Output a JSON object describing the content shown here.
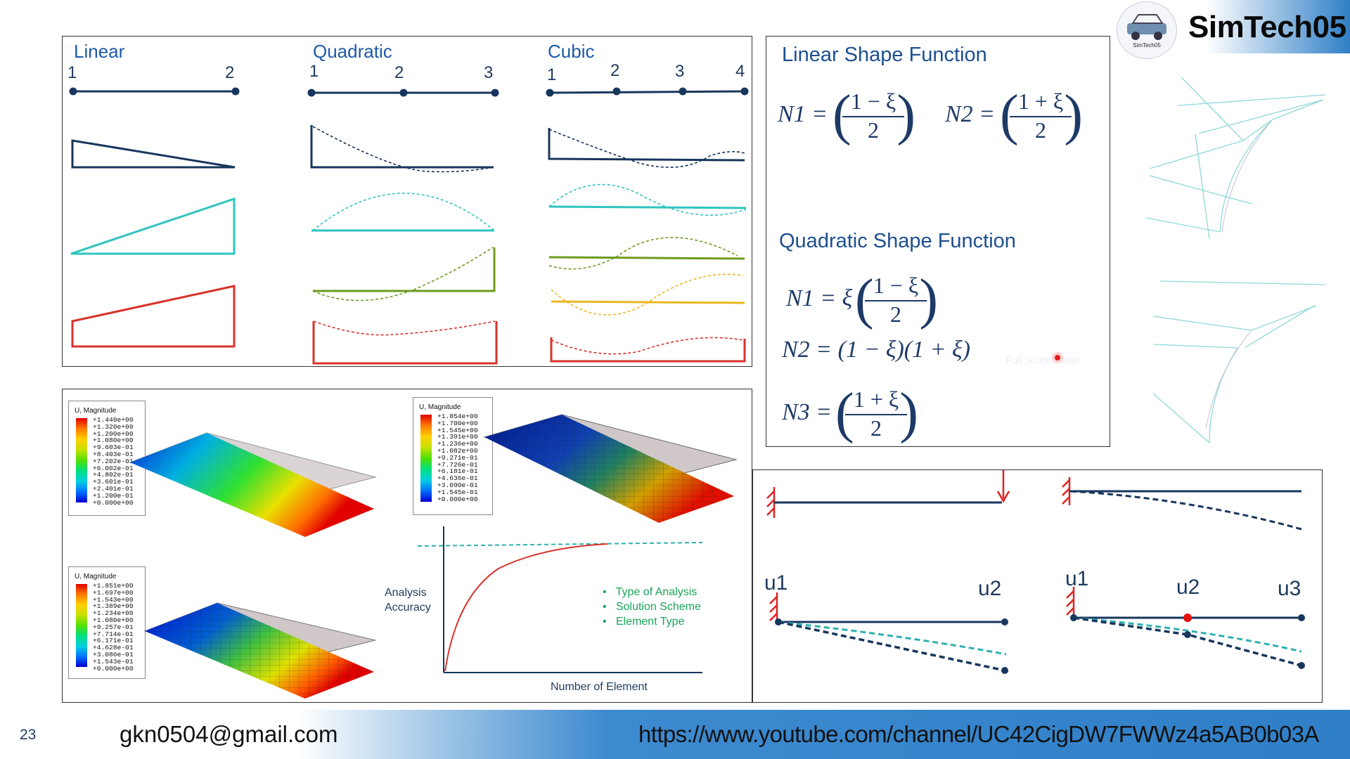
{
  "brand": {
    "name": "SimTech05",
    "logo_text": "SimTech05"
  },
  "footer": {
    "page_number": "23",
    "email": "gkn0504@gmail.com",
    "url": "https://www.youtube.com/channel/UC42CigDW7FWWz4a5AB0b03A"
  },
  "shape_panel": {
    "linear": {
      "label": "Linear",
      "nodes": [
        "1",
        "2"
      ]
    },
    "quadratic": {
      "label": "Quadratic",
      "nodes": [
        "1",
        "2",
        "3"
      ]
    },
    "cubic": {
      "label": "Cubic",
      "nodes": [
        "1",
        "2",
        "3",
        "4"
      ]
    }
  },
  "equations": {
    "linear_title": "Linear Shape Function",
    "linear_n1_lhs": "N1 =",
    "linear_n1_num": "1 − ξ",
    "linear_n1_den": "2",
    "linear_n2_lhs": "N2 =",
    "linear_n2_num": "1 + ξ",
    "linear_n2_den": "2",
    "quadratic_title": "Quadratic Shape Function",
    "quad_n1_lhs": "N1 = ξ",
    "quad_n1_num": "1 − ξ",
    "quad_n1_den": "2",
    "quad_n2": "N2 = (1 − ξ)(1 + ξ)",
    "quad_n3_lhs": "N3 =",
    "quad_n3_num": "1 + ξ",
    "quad_n3_den": "2",
    "hint_overlay": "Full screen snip"
  },
  "fea_panel": {
    "legend1": {
      "title": "U, Magnitude",
      "values": [
        "+1.440e+00",
        "+1.320e+00",
        "+1.200e+00",
        "+1.080e+00",
        "+9.603e-01",
        "+8.403e-01",
        "+7.202e-01",
        "+6.002e-01",
        "+4.802e-01",
        "+3.601e-01",
        "+2.401e-01",
        "+1.200e-01",
        "+0.000e+00"
      ]
    },
    "legend2": {
      "title": "U, Magnitude",
      "values": [
        "+1.854e+00",
        "+1.700e+00",
        "+1.545e+00",
        "+1.391e+00",
        "+1.236e+00",
        "+1.082e+00",
        "+9.271e-01",
        "+7.726e-01",
        "+6.181e-01",
        "+4.636e-01",
        "+3.090e-01",
        "+1.545e-01",
        "+0.000e+00"
      ]
    },
    "legend3": {
      "title": "U, Magnitude",
      "values": [
        "+1.851e+00",
        "+1.697e+00",
        "+1.543e+00",
        "+1.389e+00",
        "+1.234e+00",
        "+1.080e+00",
        "+9.257e-01",
        "+7.714e-01",
        "+6.171e-01",
        "+4.628e-01",
        "+3.086e-01",
        "+1.543e-01",
        "+0.000e+00"
      ]
    },
    "chart": {
      "ylabel_line1": "Analysis",
      "ylabel_line2": "Accuracy",
      "xlabel": "Number of Element",
      "bullets": [
        "Type of Analysis",
        "Solution Scheme",
        "Element Type"
      ]
    }
  },
  "beam_panel": {
    "linear_labels": [
      "u1",
      "u2"
    ],
    "quadratic_labels": [
      "u1",
      "u2",
      "u3"
    ]
  },
  "colors": {
    "navy": "#17365d",
    "teal": "#2fc4c0",
    "green": "#6e9a1e",
    "red": "#d9322b",
    "yellow": "#e8b820",
    "label_blue": "#1d5aa8"
  }
}
